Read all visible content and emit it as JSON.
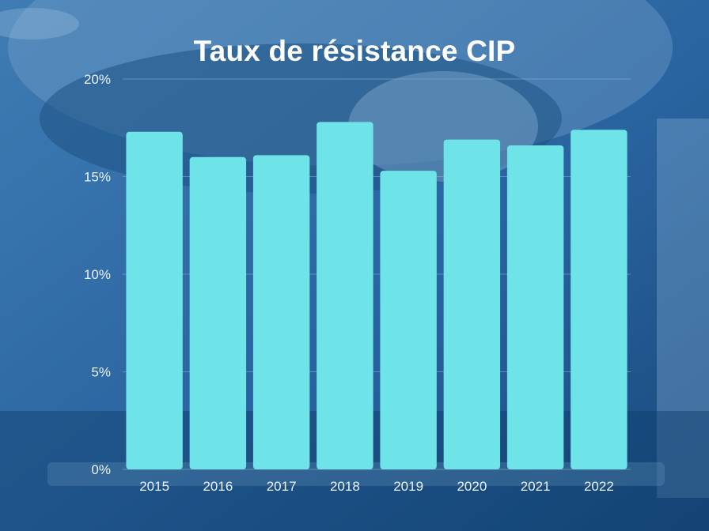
{
  "colors": {
    "bar": "#6ee3e8",
    "background_dark": "#1b4f80",
    "background_light": "#5a8fbf",
    "gridline": "#8fb3d6",
    "text": "#ffffff"
  },
  "chart_data": {
    "type": "bar",
    "title": "Taux de résistance CIP",
    "xlabel": "",
    "ylabel": "",
    "categories": [
      "2015",
      "2016",
      "2017",
      "2018",
      "2019",
      "2020",
      "2021",
      "2022"
    ],
    "values": [
      17.3,
      16.0,
      16.1,
      17.8,
      15.3,
      16.9,
      16.6,
      17.4
    ],
    "ylim": [
      0,
      20
    ],
    "yticks": [
      0,
      5,
      10,
      15,
      20
    ],
    "ytick_labels": [
      "0%",
      "5%",
      "10%",
      "15%",
      "20%"
    ],
    "grid": true,
    "legend": "none"
  }
}
